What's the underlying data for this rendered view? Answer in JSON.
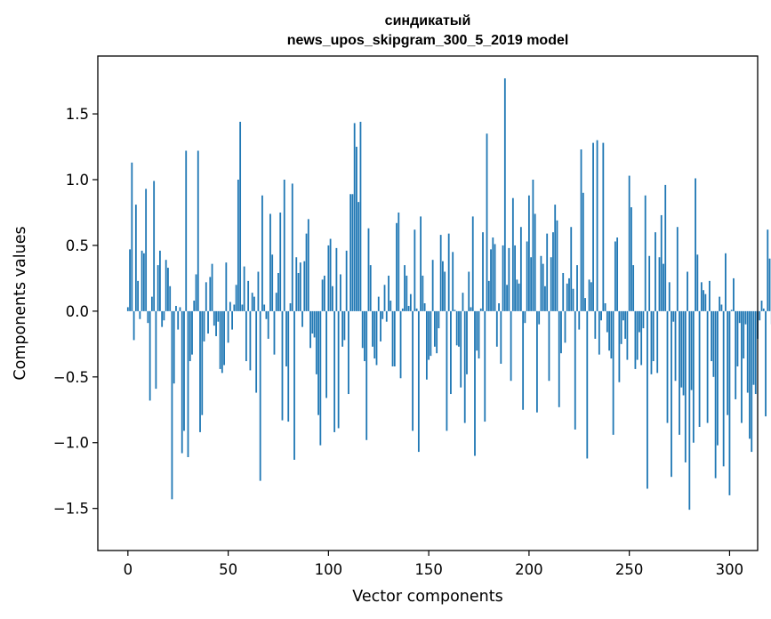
{
  "chart_data": {
    "type": "bar",
    "title_line1": "синдикатый",
    "title_line2": "news_upos_skipgram_300_5_2019 model",
    "xlabel": "Vector components",
    "ylabel": "Components values",
    "xlim": [
      -15,
      314
    ],
    "ylim": [
      -1.82,
      1.94
    ],
    "x_ticks": [
      0,
      50,
      100,
      150,
      200,
      250,
      300
    ],
    "x_tick_labels": [
      "0",
      "50",
      "100",
      "150",
      "200",
      "250",
      "300"
    ],
    "y_ticks": [
      -1.5,
      -1.0,
      -0.5,
      0.0,
      0.5,
      1.0,
      1.5
    ],
    "y_tick_labels": [
      "−1.5",
      "−1.0",
      "−0.5",
      "0.0",
      "0.5",
      "1.0",
      "1.5"
    ],
    "bar_color": "#1f77b4",
    "grid": false,
    "values": [
      0.03,
      0.47,
      1.13,
      -0.22,
      0.81,
      0.23,
      -0.06,
      0.46,
      0.44,
      0.93,
      -0.09,
      -0.68,
      0.11,
      0.99,
      -0.59,
      0.35,
      0.46,
      -0.12,
      -0.07,
      0.39,
      0.33,
      0.19,
      -1.43,
      -0.55,
      0.04,
      -0.14,
      0.03,
      -1.08,
      -0.91,
      1.22,
      -1.11,
      -0.38,
      -0.33,
      0.08,
      0.28,
      1.22,
      -0.92,
      -0.79,
      -0.23,
      0.22,
      -0.17,
      0.26,
      0.36,
      -0.11,
      -0.19,
      -0.08,
      -0.44,
      -0.47,
      -0.41,
      0.37,
      -0.24,
      0.07,
      -0.14,
      0.05,
      0.2,
      1.0,
      1.44,
      0.05,
      0.34,
      -0.38,
      0.23,
      -0.45,
      0.14,
      0.11,
      -0.62,
      0.3,
      -1.29,
      0.88,
      0.05,
      -0.06,
      -0.21,
      0.74,
      0.43,
      -0.33,
      0.14,
      0.29,
      0.75,
      -0.83,
      1.0,
      -0.42,
      -0.84,
      0.06,
      0.97,
      -1.13,
      0.41,
      0.29,
      0.37,
      -0.12,
      0.38,
      0.59,
      0.7,
      -0.28,
      -0.17,
      -0.2,
      -0.48,
      -0.79,
      -1.02,
      0.24,
      0.27,
      -0.66,
      0.5,
      0.55,
      0.19,
      -0.92,
      0.48,
      -0.89,
      0.28,
      -0.27,
      -0.22,
      0.46,
      -0.63,
      0.89,
      0.89,
      1.43,
      1.25,
      0.83,
      1.44,
      -0.28,
      -0.38,
      -0.98,
      0.63,
      0.35,
      -0.27,
      -0.36,
      -0.41,
      0.11,
      -0.23,
      -0.06,
      0.2,
      -0.08,
      0.27,
      0.08,
      -0.42,
      -0.42,
      0.67,
      0.75,
      -0.51,
      0.02,
      0.35,
      0.27,
      0.04,
      0.13,
      -0.91,
      0.62,
      0.02,
      -1.07,
      0.72,
      0.27,
      0.06,
      -0.52,
      -0.37,
      -0.34,
      0.39,
      -0.27,
      -0.32,
      -0.13,
      0.58,
      0.38,
      0.3,
      -0.91,
      0.59,
      -0.63,
      0.45,
      0.01,
      -0.26,
      -0.27,
      -0.58,
      0.14,
      -0.85,
      -0.48,
      0.3,
      0.03,
      0.72,
      -1.1,
      -0.3,
      -0.36,
      0.02,
      0.6,
      -0.84,
      1.35,
      0.23,
      0.47,
      0.56,
      0.51,
      -0.27,
      0.06,
      -0.4,
      0.5,
      1.77,
      0.2,
      0.48,
      -0.53,
      0.86,
      0.5,
      0.24,
      0.21,
      0.64,
      -0.75,
      -0.09,
      0.53,
      0.88,
      0.41,
      1.0,
      0.74,
      -0.77,
      -0.1,
      0.42,
      0.36,
      0.19,
      0.59,
      -0.53,
      0.41,
      0.6,
      0.81,
      0.69,
      -0.73,
      -0.32,
      0.29,
      -0.24,
      0.21,
      0.25,
      0.64,
      0.17,
      -0.9,
      0.35,
      -0.14,
      1.23,
      0.9,
      0.1,
      -1.12,
      0.24,
      0.22,
      1.28,
      -0.21,
      1.3,
      -0.33,
      -0.07,
      1.28,
      0.06,
      -0.16,
      -0.3,
      -0.36,
      -0.94,
      0.53,
      0.56,
      -0.54,
      -0.25,
      -0.07,
      -0.21,
      -0.37,
      1.03,
      0.79,
      0.35,
      -0.44,
      -0.37,
      -0.16,
      -0.41,
      -0.13,
      0.88,
      -1.35,
      0.42,
      -0.48,
      -0.38,
      0.6,
      -0.47,
      0.41,
      0.73,
      0.36,
      0.96,
      -0.85,
      0.22,
      -1.26,
      -0.08,
      -0.53,
      0.64,
      -0.94,
      -0.58,
      -0.64,
      -1.15,
      0.3,
      -1.51,
      -0.6,
      -1.0,
      1.01,
      0.43,
      -0.88,
      0.22,
      0.16,
      0.13,
      -0.85,
      0.23,
      -0.38,
      -0.5,
      -1.27,
      -1.02,
      0.11,
      0.05,
      -1.18,
      0.44,
      -0.79,
      -1.4,
      0.01,
      0.25,
      -0.67,
      -0.42,
      -0.09,
      -0.85,
      -0.36,
      -0.1,
      -0.62,
      -0.97,
      -1.07,
      -0.56,
      -0.63,
      -0.21,
      -0.07,
      0.08,
      0.02,
      -0.8,
      0.62,
      0.4,
      -0.1
    ]
  }
}
